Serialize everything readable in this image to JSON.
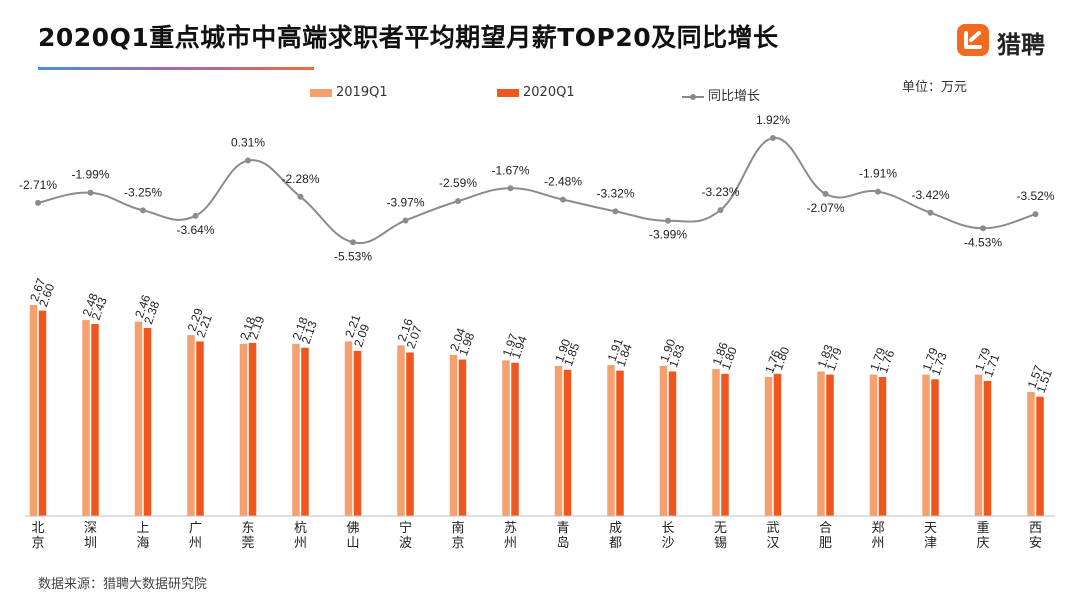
{
  "header": {
    "title": "2020Q1重点城市中高端求职者平均期望月薪TOP20及同比增长",
    "logo_text": "猎聘",
    "logo_icon": "liepin-logo-icon"
  },
  "unit_label": "单位：万元",
  "source": "数据来源：猎聘大数据研究院",
  "colors": {
    "bar_2019": "#f5a06f",
    "bar_2020": "#f0571f",
    "growth_line": "#8c8c8c",
    "title_gradient": [
      "#4a90d9",
      "#ef6a3a"
    ]
  },
  "chart_data": {
    "type": "bar",
    "categories": [
      "北京",
      "深圳",
      "上海",
      "广州",
      "东莞",
      "杭州",
      "佛山",
      "宁波",
      "南京",
      "苏州",
      "青岛",
      "成都",
      "长沙",
      "无锡",
      "武汉",
      "合肥",
      "郑州",
      "天津",
      "重庆",
      "西安"
    ],
    "series": [
      {
        "name": "2019Q1",
        "type": "bar",
        "values": [
          2.67,
          2.48,
          2.46,
          2.29,
          2.18,
          2.18,
          2.21,
          2.16,
          2.04,
          1.97,
          1.9,
          1.91,
          1.9,
          1.86,
          1.76,
          1.83,
          1.79,
          1.79,
          1.79,
          1.57
        ],
        "labels": [
          "2.67",
          "2.48",
          "2.46",
          "2.29",
          "2.18",
          "2.18",
          "2.21",
          "2.16",
          "2.04",
          "1.97",
          "1.90",
          "1.91",
          "1.90",
          "1.86",
          "1.76",
          "1.83",
          "1.79",
          "1.79",
          "1.79",
          "1.57"
        ]
      },
      {
        "name": "2020Q1",
        "type": "bar",
        "values": [
          2.6,
          2.43,
          2.38,
          2.21,
          2.19,
          2.13,
          2.09,
          2.07,
          1.98,
          1.94,
          1.85,
          1.84,
          1.83,
          1.8,
          1.8,
          1.79,
          1.76,
          1.73,
          1.71,
          1.51
        ],
        "labels": [
          "2.60",
          "2.43",
          "2.38",
          "2.21",
          "2.19",
          "2.13",
          "2.09",
          "2.07",
          "1.98",
          "1.94",
          "1.85",
          "1.84",
          "1.83",
          "1.80",
          "1.80",
          "1.79",
          "1.76",
          "1.73",
          "1.71",
          "1.51"
        ]
      },
      {
        "name": "同比增长",
        "type": "line",
        "values": [
          -2.71,
          -1.99,
          -3.25,
          -3.64,
          0.31,
          -2.28,
          -5.53,
          -3.97,
          -2.59,
          -1.67,
          -2.48,
          -3.32,
          -3.99,
          -3.23,
          1.92,
          -2.07,
          -1.91,
          -3.42,
          -4.53,
          -3.52
        ],
        "labels": [
          "-2.71%",
          "-1.99%",
          "-3.25%",
          "-3.64%",
          "0.31%",
          "-2.28%",
          "-5.53%",
          "-3.97%",
          "-2.59%",
          "-1.67%",
          "-2.48%",
          "-3.32%",
          "-3.99%",
          "-3.23%",
          "1.92%",
          "-2.07%",
          "-1.91%",
          "-3.42%",
          "-4.53%",
          "-3.52%"
        ]
      }
    ],
    "legend": [
      "2019Q1",
      "2020Q1",
      "同比增长"
    ],
    "legend_position": "top",
    "unit": "万元",
    "grid": false
  }
}
